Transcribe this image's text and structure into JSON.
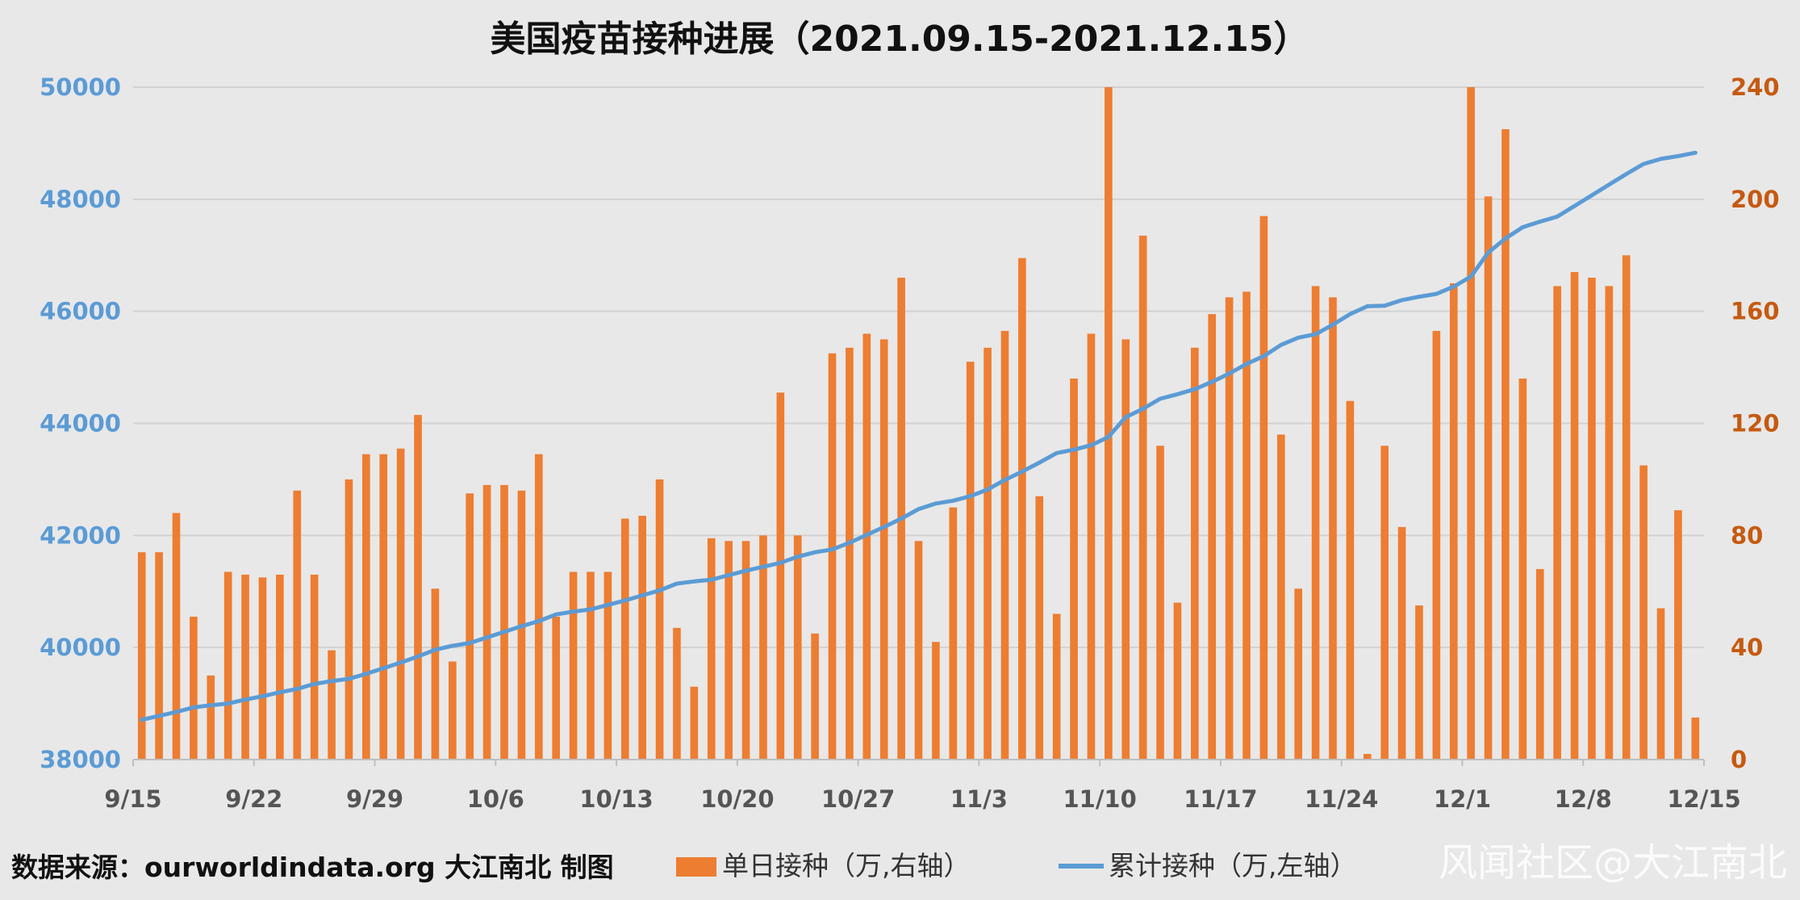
{
  "chart_data": {
    "type": "bar",
    "title": "美国疫苗接种进展（2021.09.15-2021.12.15）",
    "x_tick_labels": [
      "9/15",
      "9/22",
      "9/29",
      "10/6",
      "10/13",
      "10/20",
      "10/27",
      "11/3",
      "11/10",
      "11/17",
      "11/24",
      "12/1",
      "12/8",
      "12/15"
    ],
    "y_left": {
      "label": "累计接种（万,左轴）",
      "lim": [
        38000,
        50000
      ],
      "ticks": [
        38000,
        40000,
        42000,
        44000,
        46000,
        48000,
        50000
      ],
      "color": "#5b9bd5"
    },
    "y_right": {
      "label": "单日接种（万,右轴）",
      "lim": [
        0,
        240
      ],
      "ticks": [
        0,
        40,
        80,
        120,
        160,
        200,
        240
      ],
      "color": "#c55a11"
    },
    "series": [
      {
        "name": "单日接种（万,右轴）",
        "type": "bar",
        "axis": "right",
        "color": "#ed7d31",
        "values": [
          74,
          74,
          88,
          51,
          30,
          67,
          66,
          65,
          66,
          96,
          66,
          39,
          100,
          109,
          109,
          111,
          123,
          61,
          35,
          95,
          98,
          98,
          96,
          109,
          51,
          67,
          67,
          67,
          86,
          87,
          100,
          47,
          26,
          79,
          78,
          78,
          80,
          131,
          80,
          45,
          145,
          147,
          152,
          150,
          172,
          78,
          42,
          90,
          142,
          147,
          153,
          179,
          94,
          52,
          136,
          152,
          240,
          150,
          187,
          112,
          56,
          147,
          159,
          165,
          167,
          194,
          116,
          61,
          169,
          165,
          128,
          2,
          112,
          83,
          55,
          153,
          170,
          240,
          201,
          225,
          136,
          68,
          169,
          174,
          172,
          169,
          180,
          105,
          54,
          89,
          15
        ]
      },
      {
        "name": "累计接种（万,左轴）",
        "type": "line",
        "axis": "left",
        "color": "#5b9bd5",
        "values": [
          38710,
          38780,
          38850,
          38930,
          38970,
          39000,
          39070,
          39130,
          39200,
          39260,
          39350,
          39400,
          39440,
          39530,
          39630,
          39730,
          39840,
          39960,
          40030,
          40080,
          40180,
          40280,
          40380,
          40470,
          40590,
          40640,
          40680,
          40760,
          40840,
          40930,
          41020,
          41140,
          41180,
          41210,
          41290,
          41370,
          41440,
          41510,
          41620,
          41700,
          41750,
          41870,
          42010,
          42150,
          42300,
          42470,
          42570,
          42620,
          42700,
          42820,
          42990,
          43140,
          43300,
          43470,
          43530,
          43610,
          43760,
          44110,
          44260,
          44440,
          44520,
          44610,
          44740,
          44890,
          45060,
          45200,
          45400,
          45530,
          45590,
          45760,
          45950,
          46090,
          46100,
          46200,
          46260,
          46310,
          46440,
          46620,
          47050,
          47300,
          47500,
          47600,
          47690,
          47880,
          48070,
          48260,
          48450,
          48630,
          48720,
          48770,
          48830
        ]
      }
    ],
    "legend_position": "bottom",
    "grid": true
  },
  "footer": {
    "source": "数据来源：ourworldindata.org 大江南北 制图"
  },
  "legend": {
    "bar_label": "单日接种（万,右轴）",
    "line_label": "累计接种（万,左轴）"
  },
  "watermark": "风闻社区@大江南北"
}
